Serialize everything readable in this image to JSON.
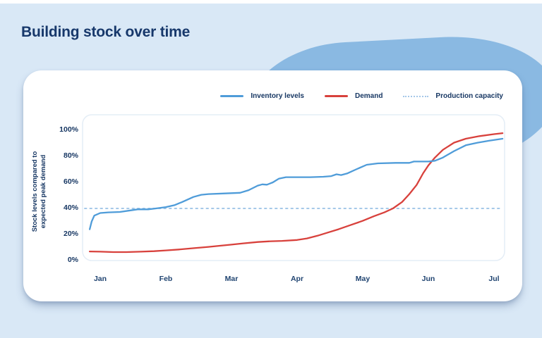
{
  "page": {
    "title": "Building stock over time"
  },
  "legend": [
    {
      "label": "Inventory levels",
      "type": "solid",
      "color": "#4f9cd9"
    },
    {
      "label": "Demand",
      "type": "solid",
      "color": "#d8413c"
    },
    {
      "label": "Production capacity",
      "type": "dotted",
      "color": "#a5c8e8"
    }
  ],
  "colors": {
    "background": "#d9e8f6",
    "blob": "#8ab9e2",
    "card": "#ffffff",
    "navy_text": "#173763",
    "inventory_line": "#4f9cd9",
    "demand_line": "#d8413c",
    "capacity_line": "#a5c8e8",
    "plot_border": "#e4edf6"
  },
  "chart_data": {
    "type": "line",
    "title": "Building stock over time",
    "ylabel_lines": [
      "Stock levels compared to",
      "expected peak demand"
    ],
    "ylabel": "Stock levels compared to expected peak demand",
    "xlabel": "",
    "x_categories": [
      "Jan",
      "Feb",
      "Mar",
      "Apr",
      "May",
      "Jun",
      "Jul"
    ],
    "y_ticks": [
      0,
      20,
      40,
      60,
      80,
      100
    ],
    "y_tick_suffix": "%",
    "ylim": [
      0,
      112
    ],
    "grid": false,
    "legend_position": "top-right",
    "x_unit": "months (0 = Jan, 6 = Jul), values in percent",
    "series": [
      {
        "name": "Inventory levels",
        "color": "#4f9cd9",
        "style": "solid",
        "points": [
          [
            -0.16,
            24
          ],
          [
            -0.13,
            30
          ],
          [
            -0.09,
            34.5
          ],
          [
            0,
            36.5
          ],
          [
            0.12,
            37
          ],
          [
            0.3,
            37.3
          ],
          [
            0.46,
            38.5
          ],
          [
            0.57,
            39.3
          ],
          [
            0.73,
            39.3
          ],
          [
            0.85,
            40
          ],
          [
            1.0,
            41
          ],
          [
            1.13,
            42.5
          ],
          [
            1.25,
            45
          ],
          [
            1.42,
            48.8
          ],
          [
            1.54,
            50.5
          ],
          [
            1.65,
            51
          ],
          [
            1.9,
            51.5
          ],
          [
            2.13,
            52
          ],
          [
            2.26,
            54
          ],
          [
            2.4,
            57.5
          ],
          [
            2.47,
            58.5
          ],
          [
            2.54,
            58.2
          ],
          [
            2.63,
            60
          ],
          [
            2.72,
            62.8
          ],
          [
            2.83,
            64
          ],
          [
            3.2,
            64
          ],
          [
            3.4,
            64.3
          ],
          [
            3.52,
            64.8
          ],
          [
            3.6,
            66.2
          ],
          [
            3.67,
            65.6
          ],
          [
            3.76,
            66.8
          ],
          [
            3.9,
            70
          ],
          [
            4.06,
            73.5
          ],
          [
            4.23,
            74.6
          ],
          [
            4.5,
            75
          ],
          [
            4.71,
            75
          ],
          [
            4.78,
            76
          ],
          [
            5.0,
            76
          ],
          [
            5.1,
            76.6
          ],
          [
            5.22,
            79
          ],
          [
            5.39,
            84
          ],
          [
            5.57,
            88.5
          ],
          [
            5.75,
            90.5
          ],
          [
            5.93,
            92
          ],
          [
            6.13,
            93.5
          ]
        ]
      },
      {
        "name": "Demand",
        "color": "#d8413c",
        "style": "solid",
        "points": [
          [
            -0.16,
            7
          ],
          [
            0,
            6.8
          ],
          [
            0.2,
            6.5
          ],
          [
            0.4,
            6.5
          ],
          [
            0.62,
            6.8
          ],
          [
            0.82,
            7.2
          ],
          [
            1.0,
            7.8
          ],
          [
            1.2,
            8.5
          ],
          [
            1.43,
            9.5
          ],
          [
            1.65,
            10.5
          ],
          [
            1.81,
            11.3
          ],
          [
            2.0,
            12.2
          ],
          [
            2.18,
            13.2
          ],
          [
            2.4,
            14.2
          ],
          [
            2.6,
            14.8
          ],
          [
            2.77,
            15.1
          ],
          [
            3.0,
            15.8
          ],
          [
            3.15,
            17
          ],
          [
            3.31,
            19
          ],
          [
            3.47,
            21.5
          ],
          [
            3.63,
            24
          ],
          [
            3.8,
            27
          ],
          [
            4.0,
            30.5
          ],
          [
            4.17,
            34
          ],
          [
            4.33,
            37
          ],
          [
            4.46,
            40
          ],
          [
            4.6,
            45
          ],
          [
            4.71,
            51
          ],
          [
            4.82,
            58
          ],
          [
            4.92,
            67
          ],
          [
            5.0,
            73
          ],
          [
            5.1,
            79
          ],
          [
            5.22,
            85
          ],
          [
            5.39,
            90.5
          ],
          [
            5.57,
            93.5
          ],
          [
            5.78,
            95.5
          ],
          [
            6.0,
            97
          ],
          [
            6.13,
            97.8
          ]
        ]
      },
      {
        "name": "Production capacity",
        "color": "#a5c8e8",
        "style": "dotted",
        "constant": 40
      }
    ]
  }
}
